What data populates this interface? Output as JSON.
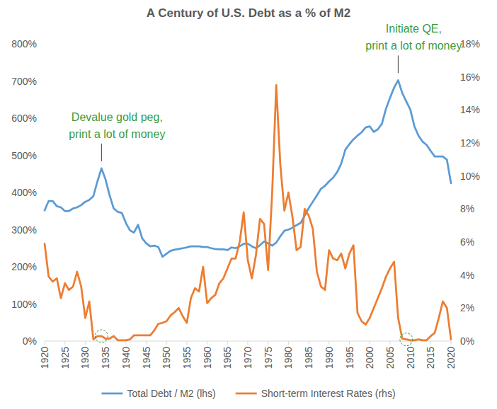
{
  "chart_data": {
    "type": "line",
    "title": "A Century of U.S. Debt as a % of M2",
    "x": [
      1920,
      1921,
      1922,
      1923,
      1924,
      1925,
      1926,
      1927,
      1928,
      1929,
      1930,
      1931,
      1932,
      1933,
      1934,
      1935,
      1936,
      1937,
      1938,
      1939,
      1940,
      1941,
      1942,
      1943,
      1944,
      1945,
      1946,
      1947,
      1948,
      1949,
      1950,
      1951,
      1952,
      1953,
      1954,
      1955,
      1956,
      1957,
      1958,
      1959,
      1960,
      1961,
      1962,
      1963,
      1964,
      1965,
      1966,
      1967,
      1968,
      1969,
      1970,
      1971,
      1972,
      1973,
      1974,
      1975,
      1976,
      1977,
      1978,
      1979,
      1980,
      1981,
      1982,
      1983,
      1984,
      1985,
      1986,
      1987,
      1988,
      1989,
      1990,
      1991,
      1992,
      1993,
      1994,
      1995,
      1996,
      1997,
      1998,
      1999,
      2000,
      2001,
      2002,
      2003,
      2004,
      2005,
      2006,
      2007,
      2008,
      2009,
      2010,
      2011,
      2012,
      2013,
      2014,
      2015,
      2016,
      2017,
      2018,
      2019,
      2020
    ],
    "series": [
      {
        "name": "Total Debt / M2 (lhs)",
        "color": "#5b9bd5",
        "values": [
          352,
          377,
          377,
          363,
          360,
          350,
          350,
          357,
          360,
          366,
          375,
          380,
          390,
          430,
          465,
          435,
          392,
          357,
          348,
          345,
          318,
          298,
          292,
          313,
          277,
          263,
          255,
          257,
          253,
          227,
          235,
          243,
          246,
          248,
          250,
          252,
          255,
          255,
          255,
          253,
          253,
          250,
          248,
          247,
          247,
          245,
          252,
          250,
          255,
          262,
          262,
          255,
          250,
          258,
          268,
          263,
          257,
          265,
          282,
          297,
          300,
          305,
          312,
          318,
          338,
          358,
          375,
          392,
          410,
          418,
          430,
          440,
          455,
          478,
          515,
          530,
          543,
          553,
          562,
          575,
          578,
          563,
          570,
          585,
          625,
          655,
          682,
          702,
          668,
          645,
          623,
          578,
          553,
          537,
          528,
          512,
          497,
          497,
          497,
          488,
          425
        ]
      },
      {
        "name": "Short-term Interest Rates (rhs)",
        "color": "#ed7d31",
        "axis": "y2",
        "values": [
          5.9,
          3.9,
          3.6,
          3.8,
          2.6,
          3.5,
          3.1,
          3.3,
          4.2,
          3.3,
          1.4,
          2.4,
          0.1,
          0.3,
          0.3,
          0.15,
          0.15,
          0.3,
          0.05,
          0.05,
          0.05,
          0.1,
          0.35,
          0.35,
          0.35,
          0.35,
          0.35,
          0.65,
          1.05,
          1.1,
          1.2,
          1.55,
          1.75,
          2.0,
          1.5,
          1.1,
          2.6,
          3.2,
          3.0,
          4.5,
          2.3,
          2.6,
          2.8,
          3.5,
          3.8,
          4.4,
          5.0,
          5.0,
          6.0,
          7.8,
          4.9,
          3.8,
          5.2,
          7.4,
          7.1,
          4.3,
          9.0,
          15.5,
          10.7,
          7.9,
          9.0,
          7.5,
          5.5,
          5.7,
          8.0,
          7.6,
          6.8,
          4.2,
          3.3,
          3.1,
          5.5,
          5.0,
          4.9,
          5.3,
          4.4,
          5.3,
          5.8,
          1.7,
          1.2,
          1.0,
          1.4,
          2.0,
          2.6,
          3.2,
          3.9,
          4.4,
          4.8,
          1.4,
          0.15,
          0.1,
          0.05,
          0.05,
          0.1,
          0.05,
          0.05,
          0.3,
          0.5,
          1.4,
          2.4,
          2.0,
          0.1
        ]
      }
    ],
    "xlim": [
      1920,
      2020
    ],
    "xticks": [
      1920,
      1925,
      1930,
      1935,
      1940,
      1945,
      1950,
      1955,
      1960,
      1965,
      1970,
      1975,
      1980,
      1985,
      1990,
      1995,
      2000,
      2005,
      2010,
      2015,
      2020
    ],
    "ylim": [
      0,
      800
    ],
    "yticks": [
      {
        "value": 0,
        "label": "0%"
      },
      {
        "value": 100,
        "label": "100%"
      },
      {
        "value": 200,
        "label": "200%"
      },
      {
        "value": 300,
        "label": "300%"
      },
      {
        "value": 400,
        "label": "400%"
      },
      {
        "value": 500,
        "label": "500%"
      },
      {
        "value": 600,
        "label": "600%"
      },
      {
        "value": 700,
        "label": "700%"
      },
      {
        "value": 800,
        "label": "800%"
      }
    ],
    "y2lim": [
      0,
      18
    ],
    "y2ticks": [
      {
        "value": 0,
        "label": "0%"
      },
      {
        "value": 2,
        "label": "2%"
      },
      {
        "value": 4,
        "label": "4%"
      },
      {
        "value": 6,
        "label": "6%"
      },
      {
        "value": 8,
        "label": "8%"
      },
      {
        "value": 10,
        "label": "10%"
      },
      {
        "value": 12,
        "label": "12%"
      },
      {
        "value": 14,
        "label": "14%"
      },
      {
        "value": 16,
        "label": "16%"
      },
      {
        "value": 18,
        "label": "18%"
      }
    ],
    "grid": false,
    "legend": "bottom",
    "annotations": [
      {
        "text": [
          "Devalue gold peg,",
          "print a lot of money"
        ],
        "x": 1934,
        "y": 465,
        "color": "#3c9b3c"
      },
      {
        "text": [
          "Initiate QE,",
          "print a lot of money"
        ],
        "x": 2007,
        "y": 702,
        "color": "#3c9b3c"
      }
    ],
    "highlights": [
      {
        "x": 1934,
        "y": 0.3,
        "axis": "y2",
        "color": "#3c9b3c"
      },
      {
        "x": 2009,
        "y": 0.1,
        "axis": "y2",
        "color": "#3c9b3c"
      }
    ]
  }
}
